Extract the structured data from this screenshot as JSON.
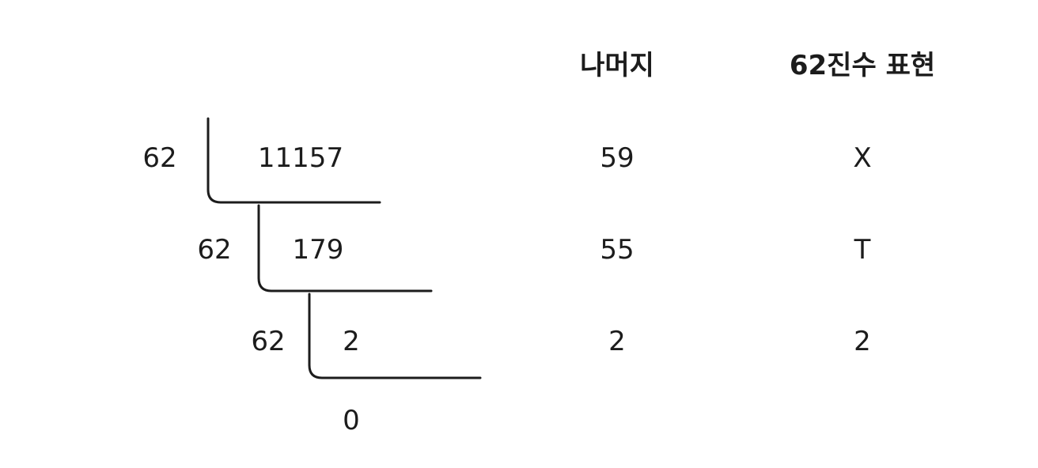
{
  "headers": {
    "remainder": "나머지",
    "base62": "62진수 표현"
  },
  "division_steps": [
    {
      "divisor": "62",
      "dividend": "11157",
      "remainder": "59",
      "base62_digit": "X"
    },
    {
      "divisor": "62",
      "dividend": "179",
      "remainder": "55",
      "base62_digit": "T"
    },
    {
      "divisor": "62",
      "dividend": "2",
      "remainder": "2",
      "base62_digit": "2"
    }
  ],
  "final_quotient": "0"
}
